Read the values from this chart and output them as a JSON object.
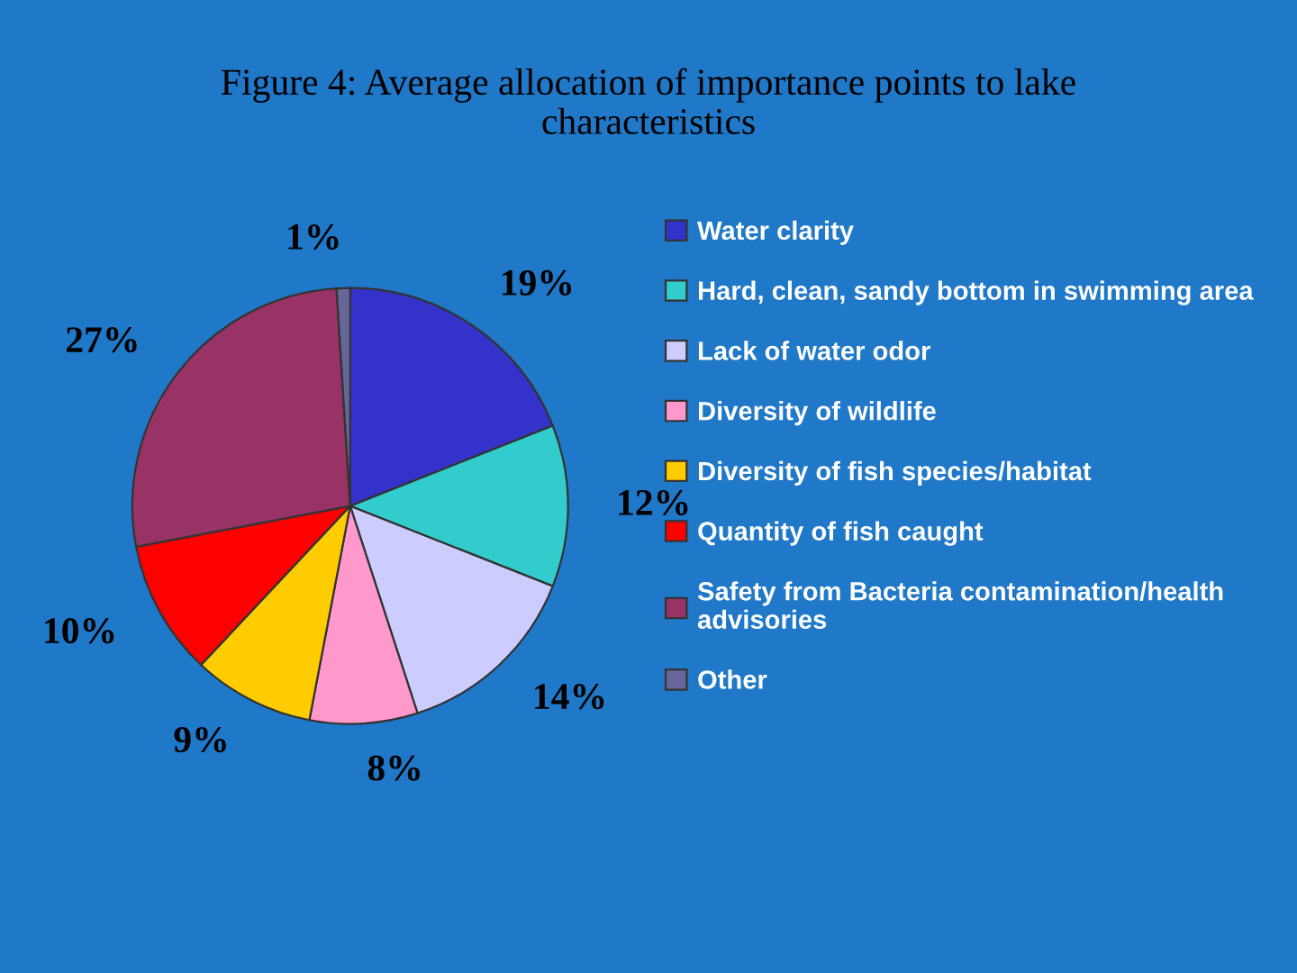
{
  "chart_data": {
    "type": "pie",
    "title": "Figure 4: Average allocation of importance points to lake\ncharacteristics",
    "categories": [
      "Water clarity",
      "Hard, clean, sandy bottom in swimming area",
      "Lack of water odor",
      "Diversity of wildlife",
      "Diversity of fish species/habitat",
      "Quantity of fish caught",
      "Safety from Bacteria contamination/health\nadvisories",
      "Other"
    ],
    "values": [
      19,
      12,
      14,
      8,
      9,
      10,
      27,
      1
    ],
    "value_labels": [
      "19%",
      "12%",
      "14%",
      "8%",
      "9%",
      "10%",
      "27%",
      "1%"
    ],
    "colors": [
      "#3333cc",
      "#33cccc",
      "#ccccff",
      "#ff99cc",
      "#ffcc00",
      "#ff0000",
      "#993366",
      "#666699"
    ],
    "legend": "right"
  }
}
